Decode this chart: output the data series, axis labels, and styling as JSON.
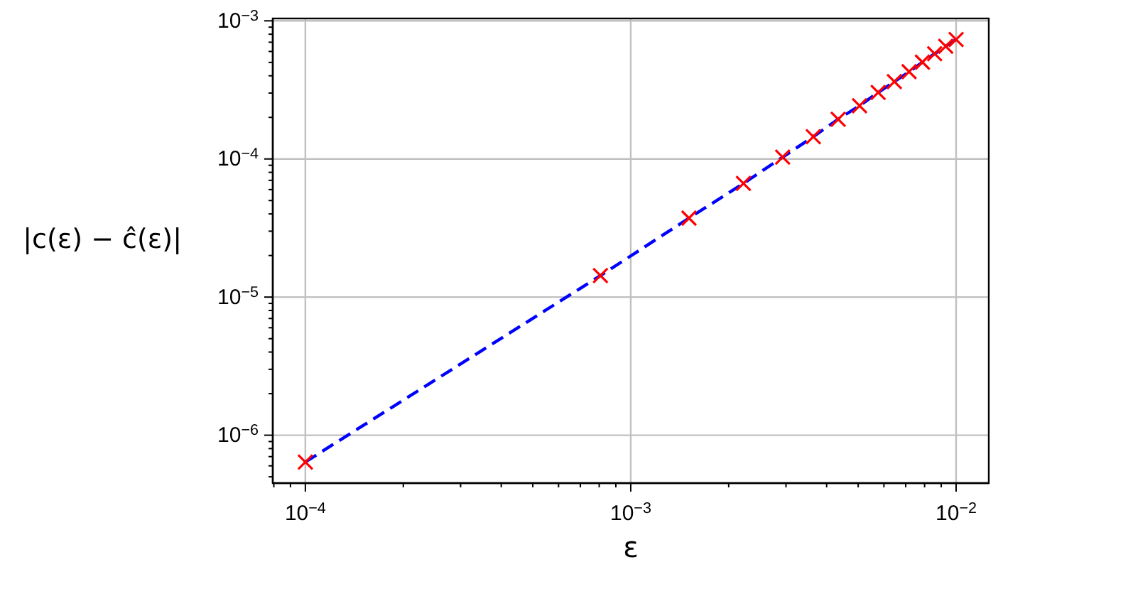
{
  "chart_data": {
    "type": "line",
    "xlabel": "ε",
    "ylabel": "|c(ε) − ĉ(ε)|",
    "x": [
      0.0001,
      0.000807,
      0.00151,
      0.00222,
      0.00293,
      0.00364,
      0.00434,
      0.00505,
      0.00576,
      0.00646,
      0.00717,
      0.00788,
      0.00859,
      0.00929,
      0.01
    ],
    "series": [
      {
        "color": "#0000ff",
        "line_style": "dashed",
        "marker": "none",
        "values": [
          6.4e-07,
          1.43e-05,
          3.73e-05,
          6.65e-05,
          0.000103,
          0.000145,
          0.000194,
          0.000243,
          0.000303,
          0.000363,
          0.000428,
          0.000502,
          0.000578,
          0.000655,
          0.000733
        ]
      },
      {
        "type": "scatter",
        "color": "#ff0000",
        "marker": "cross",
        "values": [
          6.4e-07,
          1.43e-05,
          3.73e-05,
          6.65e-05,
          0.000103,
          0.000145,
          0.000194,
          0.000243,
          0.000303,
          0.000363,
          0.000428,
          0.000502,
          0.000578,
          0.000655,
          0.000733
        ]
      }
    ],
    "log": "xy",
    "xlim": [
      7.94e-05,
      0.0126
    ],
    "ylim": [
      4.5e-07,
      0.00104
    ],
    "xticks": [
      {
        "value": 8e-05,
        "label": null
      },
      {
        "value": 9e-05,
        "label": null
      },
      {
        "value": 0.0001,
        "label": "10$^{−4}$"
      },
      {
        "value": 0.0002,
        "label": null
      },
      {
        "value": 0.0003,
        "label": null
      },
      {
        "value": 0.0004,
        "label": null
      },
      {
        "value": 0.0005,
        "label": null
      },
      {
        "value": 0.0006,
        "label": null
      },
      {
        "value": 0.0007,
        "label": null
      },
      {
        "value": 0.0008,
        "label": null
      },
      {
        "value": 0.0009,
        "label": null
      },
      {
        "value": 0.001,
        "label": "10$^{−3}$"
      },
      {
        "value": 0.002,
        "label": null
      },
      {
        "value": 0.003,
        "label": null
      },
      {
        "value": 0.004,
        "label": null
      },
      {
        "value": 0.005,
        "label": null
      },
      {
        "value": 0.006,
        "label": null
      },
      {
        "value": 0.007,
        "label": null
      },
      {
        "value": 0.008,
        "label": null
      },
      {
        "value": 0.009,
        "label": null
      },
      {
        "value": 0.01,
        "label": "10$^{−2}$"
      }
    ],
    "yticks": [
      {
        "value": 5e-07,
        "label": null
      },
      {
        "value": 6e-07,
        "label": null
      },
      {
        "value": 7e-07,
        "label": null
      },
      {
        "value": 8e-07,
        "label": null
      },
      {
        "value": 9e-07,
        "label": null
      },
      {
        "value": 1e-06,
        "label": "10$^{−6}$"
      },
      {
        "value": 2e-06,
        "label": null
      },
      {
        "value": 3e-06,
        "label": null
      },
      {
        "value": 4e-06,
        "label": null
      },
      {
        "value": 5e-06,
        "label": null
      },
      {
        "value": 6e-06,
        "label": null
      },
      {
        "value": 7e-06,
        "label": null
      },
      {
        "value": 8e-06,
        "label": null
      },
      {
        "value": 9e-06,
        "label": null
      },
      {
        "value": 1e-05,
        "label": "10$^{−5}$"
      },
      {
        "value": 2e-05,
        "label": null
      },
      {
        "value": 3e-05,
        "label": null
      },
      {
        "value": 4e-05,
        "label": null
      },
      {
        "value": 5e-05,
        "label": null
      },
      {
        "value": 6e-05,
        "label": null
      },
      {
        "value": 7e-05,
        "label": null
      },
      {
        "value": 8e-05,
        "label": null
      },
      {
        "value": 9e-05,
        "label": null
      },
      {
        "value": 0.0001,
        "label": "10$^{−4}$"
      },
      {
        "value": 0.0002,
        "label": null
      },
      {
        "value": 0.0003,
        "label": null
      },
      {
        "value": 0.0004,
        "label": null
      },
      {
        "value": 0.0005,
        "label": null
      },
      {
        "value": 0.0006,
        "label": null
      },
      {
        "value": 0.0007,
        "label": null
      },
      {
        "value": 0.0008,
        "label": null
      },
      {
        "value": 0.0009,
        "label": null
      },
      {
        "value": 0.001,
        "label": "10$^{−3}$"
      }
    ],
    "grid": true
  }
}
